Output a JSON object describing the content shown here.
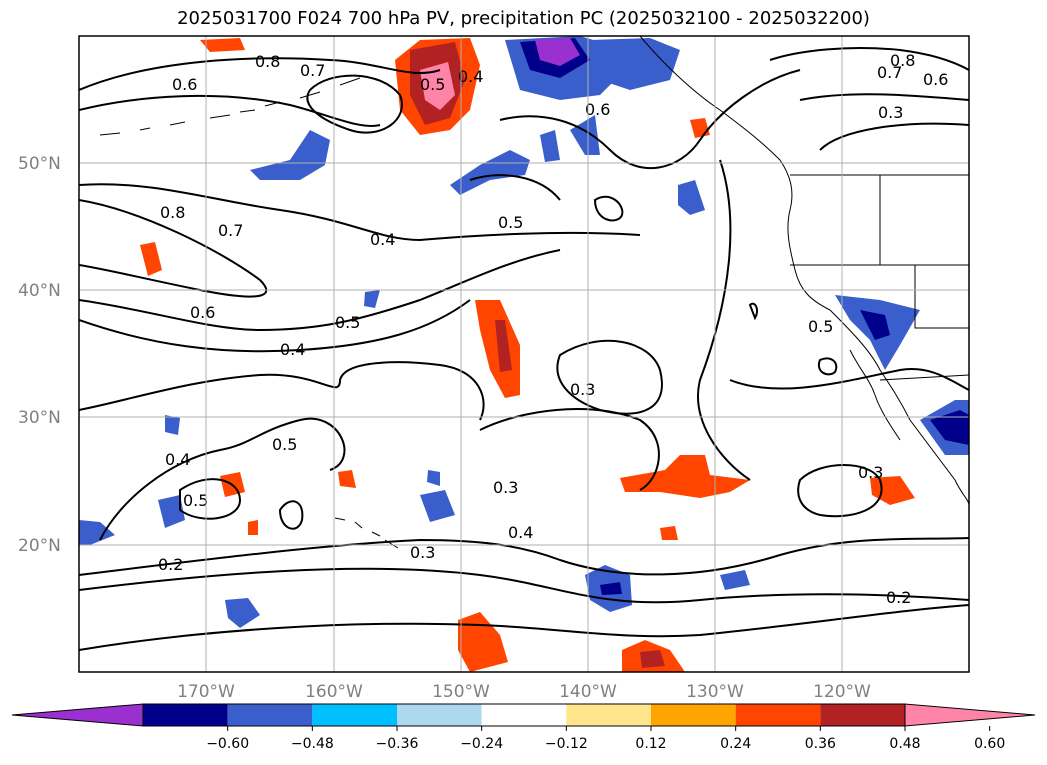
{
  "title": "2025031700 F024 700 hPa PV, precipitation PC (2025032100 - 2025032200)",
  "lat_labels": [
    "50°N",
    "40°N",
    "30°N",
    "20°N"
  ],
  "lon_labels": [
    "170°W",
    "160°W",
    "150°W",
    "140°W",
    "130°W",
    "120°W"
  ],
  "colorbar": {
    "ticks": [
      "−0.60",
      "−0.48",
      "−0.36",
      "−0.24",
      "−0.12",
      "0.12",
      "0.24",
      "0.36",
      "0.48",
      "0.60"
    ],
    "colors": [
      "#9b30d0",
      "#00008b",
      "#3a5fcd",
      "#00bfff",
      "#add8f0",
      "#ffffff",
      "#ffe68c",
      "#ffa500",
      "#ff4500",
      "#b22222",
      "#ff85a8"
    ]
  },
  "contour_labels": [
    "0.8",
    "0.7",
    "0.6",
    "0.5",
    "0.4",
    "0.3",
    "0.2"
  ],
  "palette": {
    "border": "#000000",
    "grid": "#b0b0b0"
  }
}
